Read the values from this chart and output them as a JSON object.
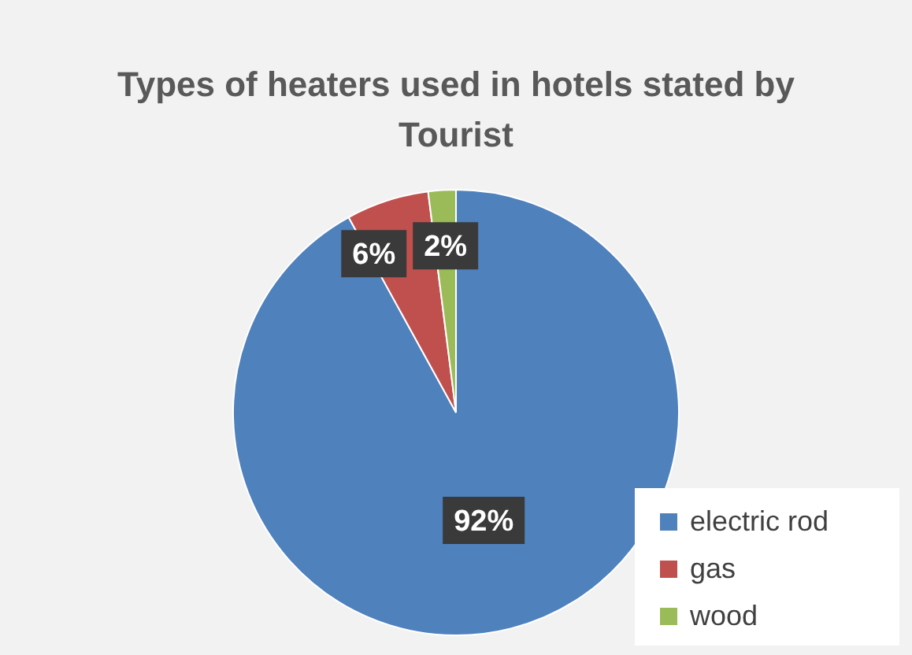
{
  "chart_data": {
    "type": "pie",
    "title": "Types of heaters used in hotels stated by Tourist",
    "categories": [
      "electric rod",
      "gas",
      "wood"
    ],
    "values": [
      92,
      6,
      2
    ],
    "colors": [
      "#4f81bd",
      "#c0504d",
      "#9bbb59"
    ],
    "value_labels": [
      "92%",
      "6%",
      "2%"
    ],
    "legend": "bottom right"
  }
}
